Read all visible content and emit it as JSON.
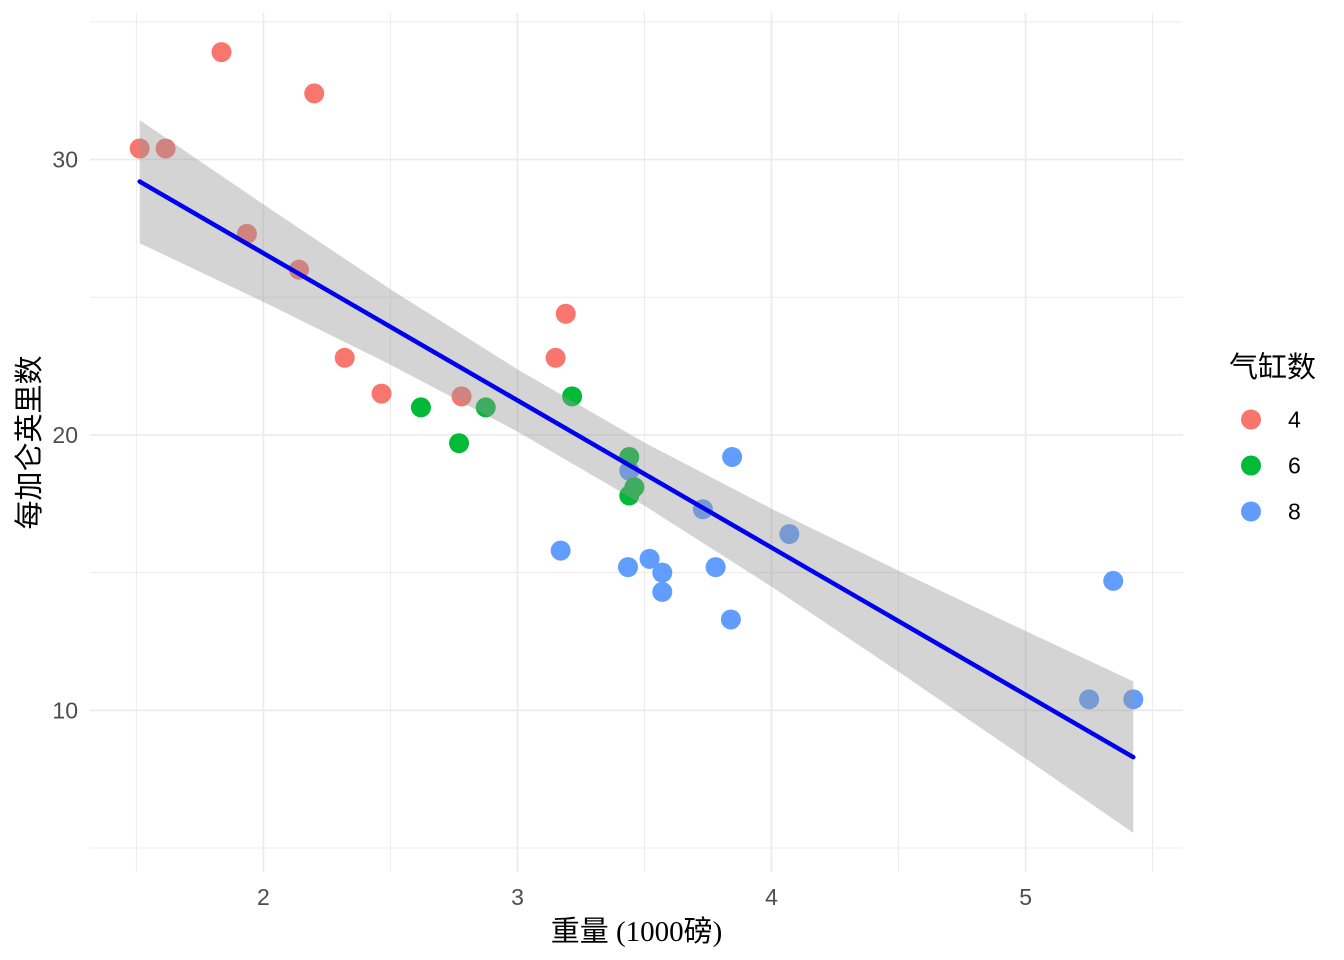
{
  "chart_data": {
    "type": "scatter",
    "title": "",
    "xlabel": "重量 (1000磅)",
    "ylabel": "每加仑英里数",
    "xlim": [
      1.3174,
      5.6196
    ],
    "ylim": [
      4.13,
      35.32
    ],
    "x_ticks": [
      2,
      3,
      4,
      5
    ],
    "y_ticks": [
      10,
      20,
      30
    ],
    "x_minor_ticks": [
      1.5,
      2.5,
      3.5,
      4.5,
      5.5
    ],
    "y_minor_ticks": [
      5,
      15,
      25,
      35
    ],
    "grid": "on",
    "background_color": "#FFFFFF",
    "grid_color": "#EBEBEB",
    "tick_text_color": "#4D4D4D",
    "title_text_color": "#000000",
    "point_radius_px": 10,
    "legend": {
      "title": "气缸数",
      "position": "right",
      "entries": [
        {
          "label": "4",
          "color": "#F8766D"
        },
        {
          "label": "6",
          "color": "#00BA38"
        },
        {
          "label": "8",
          "color": "#619CFF"
        }
      ]
    },
    "points_format": [
      "weight_1000lb",
      "miles_per_gallon",
      "cylinders"
    ],
    "points": [
      [
        2.62,
        21.0,
        6
      ],
      [
        2.875,
        21.0,
        6
      ],
      [
        2.32,
        22.8,
        4
      ],
      [
        3.215,
        21.4,
        6
      ],
      [
        3.44,
        18.7,
        8
      ],
      [
        3.46,
        18.1,
        6
      ],
      [
        3.57,
        14.3,
        8
      ],
      [
        3.19,
        24.4,
        4
      ],
      [
        3.15,
        22.8,
        4
      ],
      [
        3.44,
        19.2,
        6
      ],
      [
        3.44,
        17.8,
        6
      ],
      [
        4.07,
        16.4,
        8
      ],
      [
        3.73,
        17.3,
        8
      ],
      [
        3.78,
        15.2,
        8
      ],
      [
        5.25,
        10.4,
        8
      ],
      [
        5.424,
        10.4,
        8
      ],
      [
        5.345,
        14.7,
        8
      ],
      [
        2.2,
        32.4,
        4
      ],
      [
        1.615,
        30.4,
        4
      ],
      [
        1.835,
        33.9,
        4
      ],
      [
        2.465,
        21.5,
        4
      ],
      [
        3.52,
        15.5,
        8
      ],
      [
        3.435,
        15.2,
        8
      ],
      [
        3.84,
        13.3,
        8
      ],
      [
        3.845,
        19.2,
        8
      ],
      [
        1.935,
        27.3,
        4
      ],
      [
        2.14,
        26.0,
        4
      ],
      [
        1.513,
        30.4,
        4
      ],
      [
        3.17,
        15.8,
        8
      ],
      [
        2.77,
        19.7,
        6
      ],
      [
        3.57,
        15.0,
        8
      ],
      [
        2.78,
        21.4,
        4
      ]
    ],
    "smooth": {
      "method": "linear",
      "line_color": "#0000EE",
      "line_points": [
        [
          1.513,
          29.2
        ],
        [
          5.424,
          8.3
        ]
      ],
      "band_color": "#999999",
      "band_opacity": 0.42,
      "band_format": [
        "x",
        "ci_low",
        "ci_high"
      ],
      "band": [
        [
          1.513,
          26.96,
          31.43
        ],
        [
          2.0,
          24.83,
          28.37
        ],
        [
          2.5,
          22.55,
          25.29
        ],
        [
          3.0,
          20.12,
          22.38
        ],
        [
          3.5,
          17.43,
          19.72
        ],
        [
          4.0,
          14.49,
          17.32
        ],
        [
          4.5,
          11.4,
          15.07
        ],
        [
          5.0,
          8.25,
          12.88
        ],
        [
          5.424,
          5.55,
          11.05
        ]
      ]
    }
  }
}
